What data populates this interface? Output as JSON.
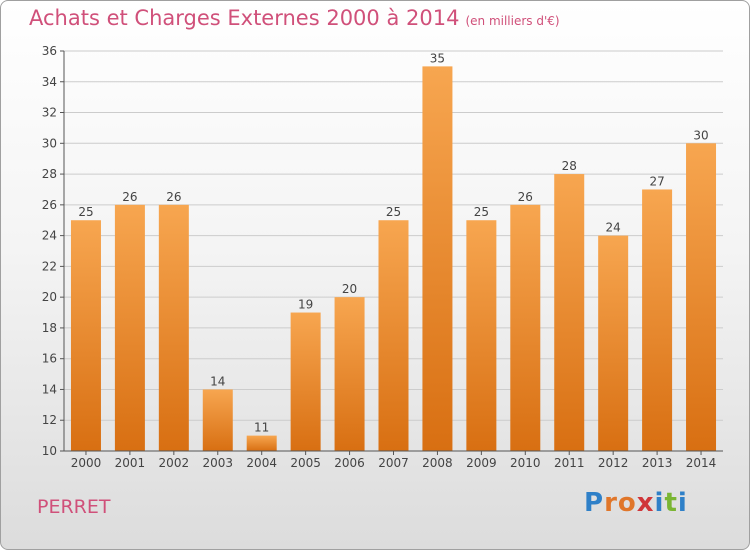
{
  "title": {
    "main": "Achats et Charges Externes 2000 à 2014",
    "unit": "(en milliers d'€)"
  },
  "footer": {
    "commune": "PERRET",
    "logo_text": "Proxiti"
  },
  "colors": {
    "title": "#d0507a",
    "bar_top": "#f7a650",
    "bar_bottom": "#d86f12",
    "grid": "#cccccc",
    "logo": [
      "#2f80c8",
      "#e0762a",
      "#e0762a",
      "#d0363a",
      "#2f80c8",
      "#7ab532",
      "#2f80c8"
    ]
  },
  "chart_data": {
    "type": "bar",
    "title": "Achats et Charges Externes 2000 à 2014",
    "xlabel": "",
    "ylabel": "",
    "ylim": [
      10,
      36
    ],
    "ytick_step": 2,
    "grid": true,
    "categories": [
      "2000",
      "2001",
      "2002",
      "2003",
      "2004",
      "2005",
      "2006",
      "2007",
      "2008",
      "2009",
      "2010",
      "2011",
      "2012",
      "2013",
      "2014"
    ],
    "values": [
      25,
      26,
      26,
      14,
      11,
      19,
      20,
      25,
      35,
      25,
      26,
      28,
      24,
      27,
      30
    ]
  }
}
